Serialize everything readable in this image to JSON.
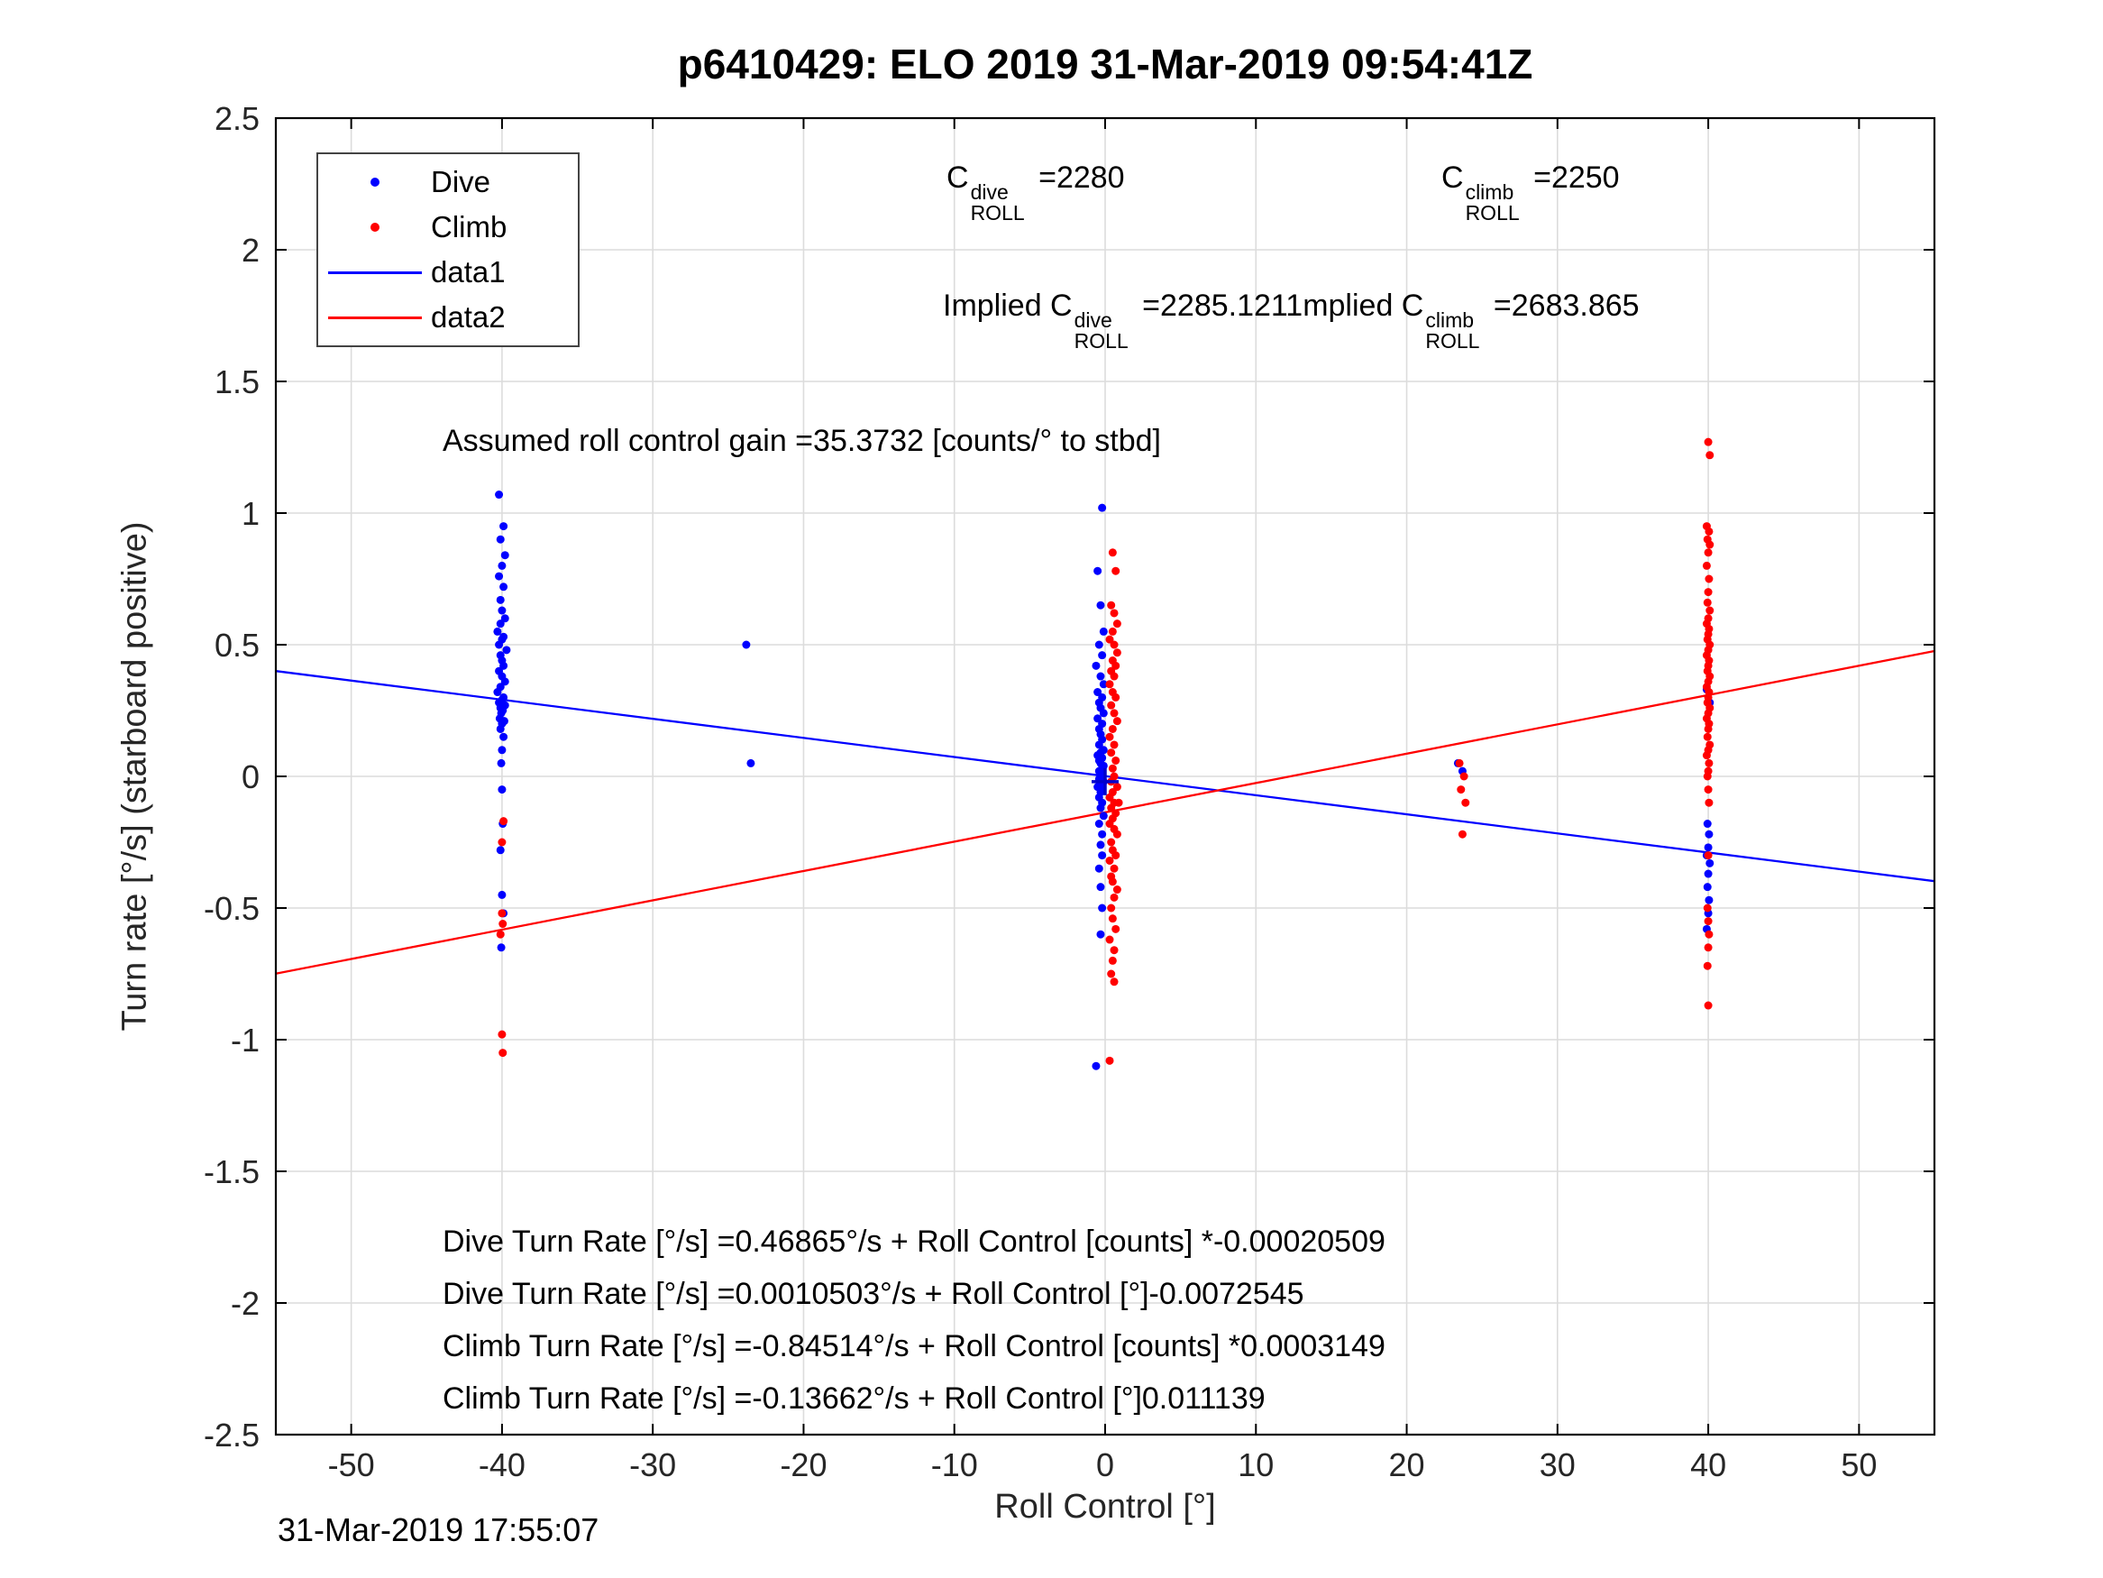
{
  "title": "p6410429: ELO 2019 31-Mar-2019 09:54:41Z",
  "footer_timestamp": "31-Mar-2019 17:55:07",
  "legend": {
    "position": "northwest",
    "items": [
      {
        "label": "Dive",
        "marker": "dot",
        "color": "#0000ff"
      },
      {
        "label": "Climb",
        "marker": "dot",
        "color": "#ff0000"
      },
      {
        "label": "data1",
        "marker": "line",
        "color": "#0000ff"
      },
      {
        "label": "data2",
        "marker": "line",
        "color": "#ff0000"
      }
    ]
  },
  "annotations": {
    "c_dive": {
      "pre": "C",
      "sup": "dive",
      "sub": "ROLL",
      "post": " =2280"
    },
    "c_climb": {
      "pre": "C",
      "sup": "climb",
      "sub": "ROLL",
      "post": " =2250"
    },
    "implied_dive": {
      "pre": "Implied C",
      "sup": "dive",
      "sub": "ROLL",
      "post": " =2285.1211"
    },
    "implied_climb": {
      "pre": "mplied C",
      "sup": "climb",
      "sub": "ROLL",
      "post": " =2683.865"
    },
    "gain": "Assumed roll control gain =35.3732 [counts/° to stbd]",
    "equations": [
      "Dive Turn Rate [°/s] =0.46865°/s + Roll Control [counts] *-0.00020509",
      "Dive Turn Rate [°/s] =0.0010503°/s + Roll Control [°]-0.0072545",
      "Climb Turn Rate [°/s] =-0.84514°/s + Roll Control [counts] *0.0003149",
      "Climb Turn Rate [°/s] =-0.13662°/s + Roll Control [°]0.011139"
    ]
  },
  "chart_data": {
    "type": "scatter",
    "title": "p6410429: ELO 2019 31-Mar-2019 09:54:41Z",
    "xlabel": "Roll Control [°]",
    "ylabel": "Turn rate [°/s] (starboard positive)",
    "xlim": [
      -55,
      55
    ],
    "ylim": [
      -2.5,
      2.5
    ],
    "xticks": [
      -50,
      -40,
      -30,
      -20,
      -10,
      0,
      10,
      20,
      30,
      40,
      50
    ],
    "xtick_labels": [
      "-50",
      "-40",
      "-30",
      "-20",
      "-10",
      "0",
      "10",
      "20",
      "30",
      "40",
      "50"
    ],
    "yticks": [
      -2.5,
      -2,
      -1.5,
      -1,
      -0.5,
      0,
      0.5,
      1,
      1.5,
      2,
      2.5
    ],
    "ytick_labels": [
      "-2.5",
      "-2",
      "-1.5",
      "-1",
      "-0.5",
      "0",
      "0.5",
      "1",
      "1.5",
      "2",
      "2.5"
    ],
    "grid": true,
    "grid_color": "#dcdcdc",
    "axis_color": "#262626",
    "plus_marker": {
      "x": 0,
      "y": -0.02,
      "color": "#0000cc"
    },
    "series": [
      {
        "name": "Dive",
        "type": "scatter",
        "color": "#0000ff",
        "points": [
          [
            -40.2,
            1.07
          ],
          [
            -39.9,
            0.95
          ],
          [
            -40.1,
            0.9
          ],
          [
            -39.8,
            0.84
          ],
          [
            -40.0,
            0.8
          ],
          [
            -40.2,
            0.76
          ],
          [
            -39.9,
            0.72
          ],
          [
            -40.1,
            0.67
          ],
          [
            -40.0,
            0.63
          ],
          [
            -39.8,
            0.6
          ],
          [
            -40.1,
            0.58
          ],
          [
            -40.3,
            0.55
          ],
          [
            -39.9,
            0.53
          ],
          [
            -40.0,
            0.52
          ],
          [
            -40.2,
            0.5
          ],
          [
            -39.7,
            0.48
          ],
          [
            -40.1,
            0.46
          ],
          [
            -40.0,
            0.44
          ],
          [
            -39.9,
            0.42
          ],
          [
            -40.2,
            0.4
          ],
          [
            -40.0,
            0.38
          ],
          [
            -39.8,
            0.36
          ],
          [
            -40.1,
            0.34
          ],
          [
            -40.3,
            0.32
          ],
          [
            -39.9,
            0.3
          ],
          [
            -40.0,
            0.29
          ],
          [
            -40.2,
            0.28
          ],
          [
            -39.8,
            0.27
          ],
          [
            -40.1,
            0.26
          ],
          [
            -39.95,
            0.25
          ],
          [
            -40.05,
            0.24
          ],
          [
            -40.15,
            0.22
          ],
          [
            -39.85,
            0.21
          ],
          [
            -40.0,
            0.2
          ],
          [
            -40.1,
            0.18
          ],
          [
            -39.9,
            0.15
          ],
          [
            -40.0,
            0.1
          ],
          [
            -40.05,
            0.05
          ],
          [
            -40.0,
            -0.05
          ],
          [
            -39.95,
            -0.18
          ],
          [
            -40.1,
            -0.28
          ],
          [
            -40.0,
            -0.45
          ],
          [
            -39.9,
            -0.52
          ],
          [
            -40.05,
            -0.65
          ],
          [
            -23.8,
            0.5
          ],
          [
            -23.5,
            0.05
          ],
          [
            -0.2,
            1.02
          ],
          [
            -0.5,
            0.78
          ],
          [
            -0.3,
            0.65
          ],
          [
            -0.1,
            0.55
          ],
          [
            -0.4,
            0.5
          ],
          [
            -0.2,
            0.46
          ],
          [
            -0.6,
            0.42
          ],
          [
            -0.3,
            0.38
          ],
          [
            -0.1,
            0.35
          ],
          [
            -0.5,
            0.32
          ],
          [
            -0.2,
            0.3
          ],
          [
            -0.4,
            0.28
          ],
          [
            -0.3,
            0.26
          ],
          [
            -0.1,
            0.24
          ],
          [
            -0.5,
            0.22
          ],
          [
            -0.2,
            0.2
          ],
          [
            -0.4,
            0.18
          ],
          [
            -0.3,
            0.16
          ],
          [
            -0.2,
            0.14
          ],
          [
            -0.4,
            0.12
          ],
          [
            -0.1,
            0.1
          ],
          [
            -0.3,
            0.09
          ],
          [
            -0.5,
            0.08
          ],
          [
            -0.2,
            0.07
          ],
          [
            -0.4,
            0.06
          ],
          [
            -0.3,
            0.05
          ],
          [
            -0.1,
            0.04
          ],
          [
            -0.2,
            0.03
          ],
          [
            -0.4,
            0.02
          ],
          [
            -0.3,
            0.01
          ],
          [
            -0.2,
            0.0
          ],
          [
            -0.4,
            -0.01
          ],
          [
            -0.1,
            -0.02
          ],
          [
            -0.3,
            -0.03
          ],
          [
            -0.5,
            -0.04
          ],
          [
            -0.2,
            -0.05
          ],
          [
            -0.3,
            -0.06
          ],
          [
            -0.4,
            -0.08
          ],
          [
            -0.2,
            -0.1
          ],
          [
            -0.3,
            -0.12
          ],
          [
            -0.1,
            -0.15
          ],
          [
            -0.4,
            -0.18
          ],
          [
            -0.2,
            -0.22
          ],
          [
            -0.3,
            -0.26
          ],
          [
            -0.2,
            -0.3
          ],
          [
            -0.4,
            -0.35
          ],
          [
            -0.3,
            -0.42
          ],
          [
            -0.2,
            -0.5
          ],
          [
            -0.3,
            -0.6
          ],
          [
            -0.6,
            -1.1
          ],
          [
            23.4,
            0.05
          ],
          [
            23.7,
            0.02
          ],
          [
            39.9,
            0.33
          ],
          [
            40.1,
            0.28
          ],
          [
            39.95,
            -0.18
          ],
          [
            40.05,
            -0.22
          ],
          [
            40.0,
            -0.27
          ],
          [
            39.9,
            -0.3
          ],
          [
            40.1,
            -0.33
          ],
          [
            40.0,
            -0.37
          ],
          [
            39.95,
            -0.42
          ],
          [
            40.05,
            -0.47
          ],
          [
            40.0,
            -0.52
          ],
          [
            39.9,
            -0.58
          ]
        ]
      },
      {
        "name": "Climb",
        "type": "scatter",
        "color": "#ff0000",
        "points": [
          [
            -39.9,
            -0.17
          ],
          [
            -40.0,
            -0.25
          ],
          [
            -40.0,
            -0.52
          ],
          [
            -39.95,
            -0.56
          ],
          [
            -40.1,
            -0.6
          ],
          [
            -40.0,
            -0.98
          ],
          [
            -39.95,
            -1.05
          ],
          [
            0.5,
            0.85
          ],
          [
            0.7,
            0.78
          ],
          [
            0.4,
            0.65
          ],
          [
            0.6,
            0.62
          ],
          [
            0.8,
            0.58
          ],
          [
            0.5,
            0.55
          ],
          [
            0.3,
            0.52
          ],
          [
            0.6,
            0.5
          ],
          [
            0.8,
            0.47
          ],
          [
            0.5,
            0.44
          ],
          [
            0.7,
            0.42
          ],
          [
            0.4,
            0.4
          ],
          [
            0.6,
            0.38
          ],
          [
            0.3,
            0.35
          ],
          [
            0.5,
            0.32
          ],
          [
            0.7,
            0.3
          ],
          [
            0.4,
            0.27
          ],
          [
            0.6,
            0.24
          ],
          [
            0.8,
            0.21
          ],
          [
            0.5,
            0.18
          ],
          [
            0.3,
            0.15
          ],
          [
            0.6,
            0.12
          ],
          [
            0.4,
            0.09
          ],
          [
            0.7,
            0.06
          ],
          [
            0.5,
            0.03
          ],
          [
            0.6,
            0.0
          ],
          [
            0.4,
            -0.02
          ],
          [
            0.8,
            -0.04
          ],
          [
            0.5,
            -0.06
          ],
          [
            0.3,
            -0.08
          ],
          [
            0.6,
            -0.1
          ],
          [
            0.9,
            -0.1
          ],
          [
            0.4,
            -0.12
          ],
          [
            0.7,
            -0.14
          ],
          [
            0.5,
            -0.16
          ],
          [
            0.3,
            -0.18
          ],
          [
            0.6,
            -0.2
          ],
          [
            0.8,
            -0.22
          ],
          [
            0.4,
            -0.25
          ],
          [
            0.5,
            -0.28
          ],
          [
            0.7,
            -0.3
          ],
          [
            0.3,
            -0.32
          ],
          [
            0.6,
            -0.35
          ],
          [
            0.4,
            -0.38
          ],
          [
            0.5,
            -0.4
          ],
          [
            0.8,
            -0.43
          ],
          [
            0.6,
            -0.46
          ],
          [
            0.4,
            -0.5
          ],
          [
            0.5,
            -0.54
          ],
          [
            0.7,
            -0.58
          ],
          [
            0.3,
            -0.62
          ],
          [
            0.6,
            -0.66
          ],
          [
            0.5,
            -0.7
          ],
          [
            0.4,
            -0.75
          ],
          [
            0.6,
            -0.78
          ],
          [
            0.3,
            -1.08
          ],
          [
            23.5,
            0.05
          ],
          [
            23.8,
            0.0
          ],
          [
            23.6,
            -0.05
          ],
          [
            23.9,
            -0.1
          ],
          [
            23.7,
            -0.22
          ],
          [
            40.0,
            1.27
          ],
          [
            40.1,
            1.22
          ],
          [
            39.9,
            0.95
          ],
          [
            40.05,
            0.93
          ],
          [
            39.95,
            0.9
          ],
          [
            40.1,
            0.88
          ],
          [
            40.0,
            0.85
          ],
          [
            39.9,
            0.8
          ],
          [
            40.05,
            0.75
          ],
          [
            40.0,
            0.7
          ],
          [
            39.95,
            0.66
          ],
          [
            40.1,
            0.63
          ],
          [
            40.0,
            0.6
          ],
          [
            39.9,
            0.58
          ],
          [
            40.05,
            0.56
          ],
          [
            40.0,
            0.54
          ],
          [
            39.95,
            0.52
          ],
          [
            40.1,
            0.5
          ],
          [
            40.0,
            0.48
          ],
          [
            39.9,
            0.46
          ],
          [
            40.05,
            0.44
          ],
          [
            40.0,
            0.42
          ],
          [
            39.95,
            0.4
          ],
          [
            40.1,
            0.38
          ],
          [
            40.0,
            0.36
          ],
          [
            39.9,
            0.34
          ],
          [
            40.05,
            0.32
          ],
          [
            40.0,
            0.3
          ],
          [
            39.95,
            0.28
          ],
          [
            40.1,
            0.26
          ],
          [
            40.0,
            0.24
          ],
          [
            39.9,
            0.22
          ],
          [
            40.05,
            0.2
          ],
          [
            40.0,
            0.18
          ],
          [
            39.95,
            0.15
          ],
          [
            40.1,
            0.12
          ],
          [
            40.0,
            0.1
          ],
          [
            39.9,
            0.08
          ],
          [
            40.05,
            0.05
          ],
          [
            40.0,
            0.02
          ],
          [
            39.95,
            0.0
          ],
          [
            40.0,
            -0.05
          ],
          [
            40.05,
            -0.1
          ],
          [
            40.0,
            -0.3
          ],
          [
            39.95,
            -0.5
          ],
          [
            40.0,
            -0.55
          ],
          [
            40.05,
            -0.6
          ],
          [
            40.0,
            -0.65
          ],
          [
            39.95,
            -0.72
          ],
          [
            40.0,
            -0.87
          ]
        ]
      },
      {
        "name": "data1",
        "type": "line",
        "color": "#0000ff",
        "slope": -0.0072545,
        "intercept": 0.0010503
      },
      {
        "name": "data2",
        "type": "line",
        "color": "#ff0000",
        "slope": 0.011139,
        "intercept": -0.13662
      }
    ]
  }
}
